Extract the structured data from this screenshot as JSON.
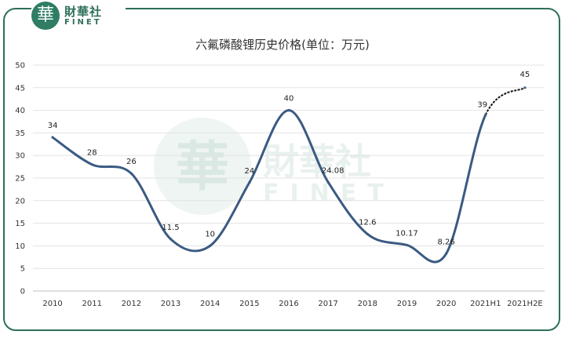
{
  "brand": {
    "mark_char": "華",
    "name_cn": "財華社",
    "name_en": "FINET",
    "color": "#2e6e5a"
  },
  "chart_data": {
    "type": "line",
    "title": "六氟磷酸锂历史价格(单位：万元)",
    "categories": [
      "2010",
      "2011",
      "2012",
      "2013",
      "2014",
      "2015",
      "2016",
      "2017",
      "2018",
      "2019",
      "2020",
      "2021H1",
      "2021H2E"
    ],
    "values": [
      34,
      28,
      26,
      11.5,
      10,
      24,
      40,
      24.08,
      12.6,
      10.17,
      8.26,
      39,
      45
    ],
    "data_labels": [
      "34",
      "28",
      "26",
      "11.5",
      "10",
      "24",
      "40",
      "24.08",
      "12.6",
      "10.17",
      "8.26",
      "39",
      "45"
    ],
    "y_ticks": [
      "0",
      "5",
      "10",
      "15",
      "20",
      "25",
      "30",
      "35",
      "40",
      "45",
      "50"
    ],
    "ylim": [
      0,
      50
    ],
    "grid": "horizontal",
    "legend": "none",
    "line_color": "#3b5a82",
    "estimate_line_color": "#111111"
  }
}
